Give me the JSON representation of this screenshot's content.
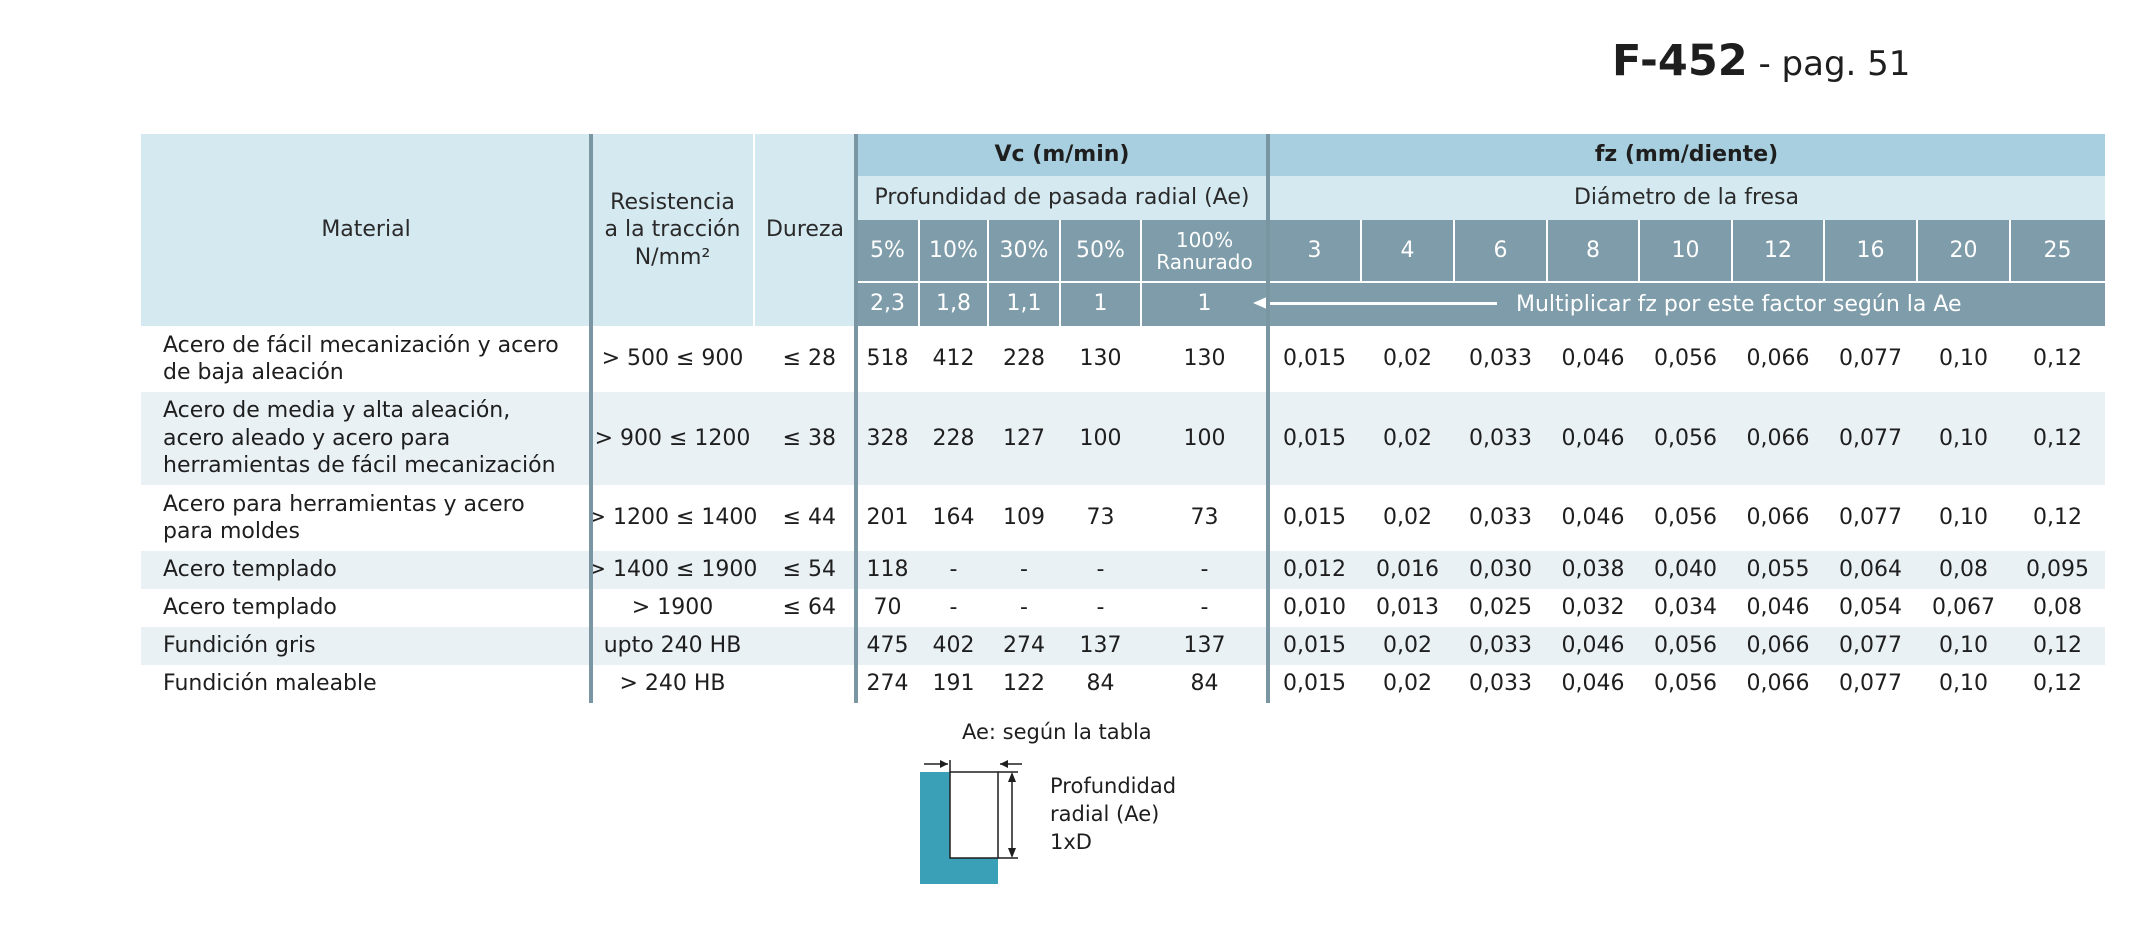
{
  "doc_title": {
    "code": "F-452",
    "page": " - pag. 51"
  },
  "header": {
    "material": "Material",
    "resistencia": "Resistencia a la tracción N/mm²",
    "dureza": "Dureza",
    "vc": "Vc (m/min)",
    "fz": "fz (mm/diente)",
    "profundidad": "Profundidad de pasada radial (Ae)",
    "diametro": "Diámetro de la fresa",
    "ae_cols": [
      "5%",
      "10%",
      "30%",
      "50%",
      "100% Ranurado"
    ],
    "ae_factors": [
      "2,3",
      "1,8",
      "1,1",
      "1",
      "1"
    ],
    "diam_cols": [
      "3",
      "4",
      "6",
      "8",
      "10",
      "12",
      "16",
      "20",
      "25"
    ],
    "factor_note": "Multiplicar fz por este factor según la Ae"
  },
  "rows": [
    {
      "material": "Acero de fácil mecanización y acero de baja aleación",
      "res": "> 500 ≤ 900",
      "dur": "≤ 28",
      "vc": [
        "518",
        "412",
        "228",
        "130",
        "130"
      ],
      "fz": [
        "0,015",
        "0,02",
        "0,033",
        "0,046",
        "0,056",
        "0,066",
        "0,077",
        "0,10",
        "0,12"
      ]
    },
    {
      "material": "Acero de media y alta aleación, acero aleado y acero para herramientas de fácil mecanización",
      "res": "> 900 ≤ 1200",
      "dur": "≤ 38",
      "vc": [
        "328",
        "228",
        "127",
        "100",
        "100"
      ],
      "fz": [
        "0,015",
        "0,02",
        "0,033",
        "0,046",
        "0,056",
        "0,066",
        "0,077",
        "0,10",
        "0,12"
      ]
    },
    {
      "material": "Acero para herramientas y acero para moldes",
      "res": "> 1200 ≤ 1400",
      "dur": "≤ 44",
      "vc": [
        "201",
        "164",
        "109",
        "73",
        "73"
      ],
      "fz": [
        "0,015",
        "0,02",
        "0,033",
        "0,046",
        "0,056",
        "0,066",
        "0,077",
        "0,10",
        "0,12"
      ]
    },
    {
      "material": "Acero templado",
      "res": "> 1400 ≤ 1900",
      "dur": "≤ 54",
      "vc": [
        "118",
        "-",
        "-",
        "-",
        "-"
      ],
      "fz": [
        "0,012",
        "0,016",
        "0,030",
        "0,038",
        "0,040",
        "0,055",
        "0,064",
        "0,08",
        "0,095"
      ]
    },
    {
      "material": "Acero templado",
      "res": "> 1900",
      "dur": "≤ 64",
      "vc": [
        "70",
        "-",
        "-",
        "-",
        "-"
      ],
      "fz": [
        "0,010",
        "0,013",
        "0,025",
        "0,032",
        "0,034",
        "0,046",
        "0,054",
        "0,067",
        "0,08"
      ]
    },
    {
      "material": "Fundición gris",
      "res": "upto 240 HB",
      "dur": "",
      "vc": [
        "475",
        "402",
        "274",
        "137",
        "137"
      ],
      "fz": [
        "0,015",
        "0,02",
        "0,033",
        "0,046",
        "0,056",
        "0,066",
        "0,077",
        "0,10",
        "0,12"
      ]
    },
    {
      "material": "Fundición maleable",
      "res": "> 240 HB",
      "dur": "",
      "vc": [
        "274",
        "191",
        "122",
        "84",
        "84"
      ],
      "fz": [
        "0,015",
        "0,02",
        "0,033",
        "0,046",
        "0,056",
        "0,066",
        "0,077",
        "0,10",
        "0,12"
      ]
    }
  ],
  "diagram": {
    "ae_label": "Ae: según la tabla",
    "depth_label_1": "Profundidad",
    "depth_label_2": "radial (Ae)",
    "depth_label_3": "1xD",
    "fill_color": "#3aa0b8"
  },
  "colors": {
    "header_light": "#d5e9f1",
    "header_mid": "#a8cfdf",
    "header_dark": "#7e9ca9",
    "row_alt": "#e9f1f5",
    "divider": "#7a96a3"
  }
}
